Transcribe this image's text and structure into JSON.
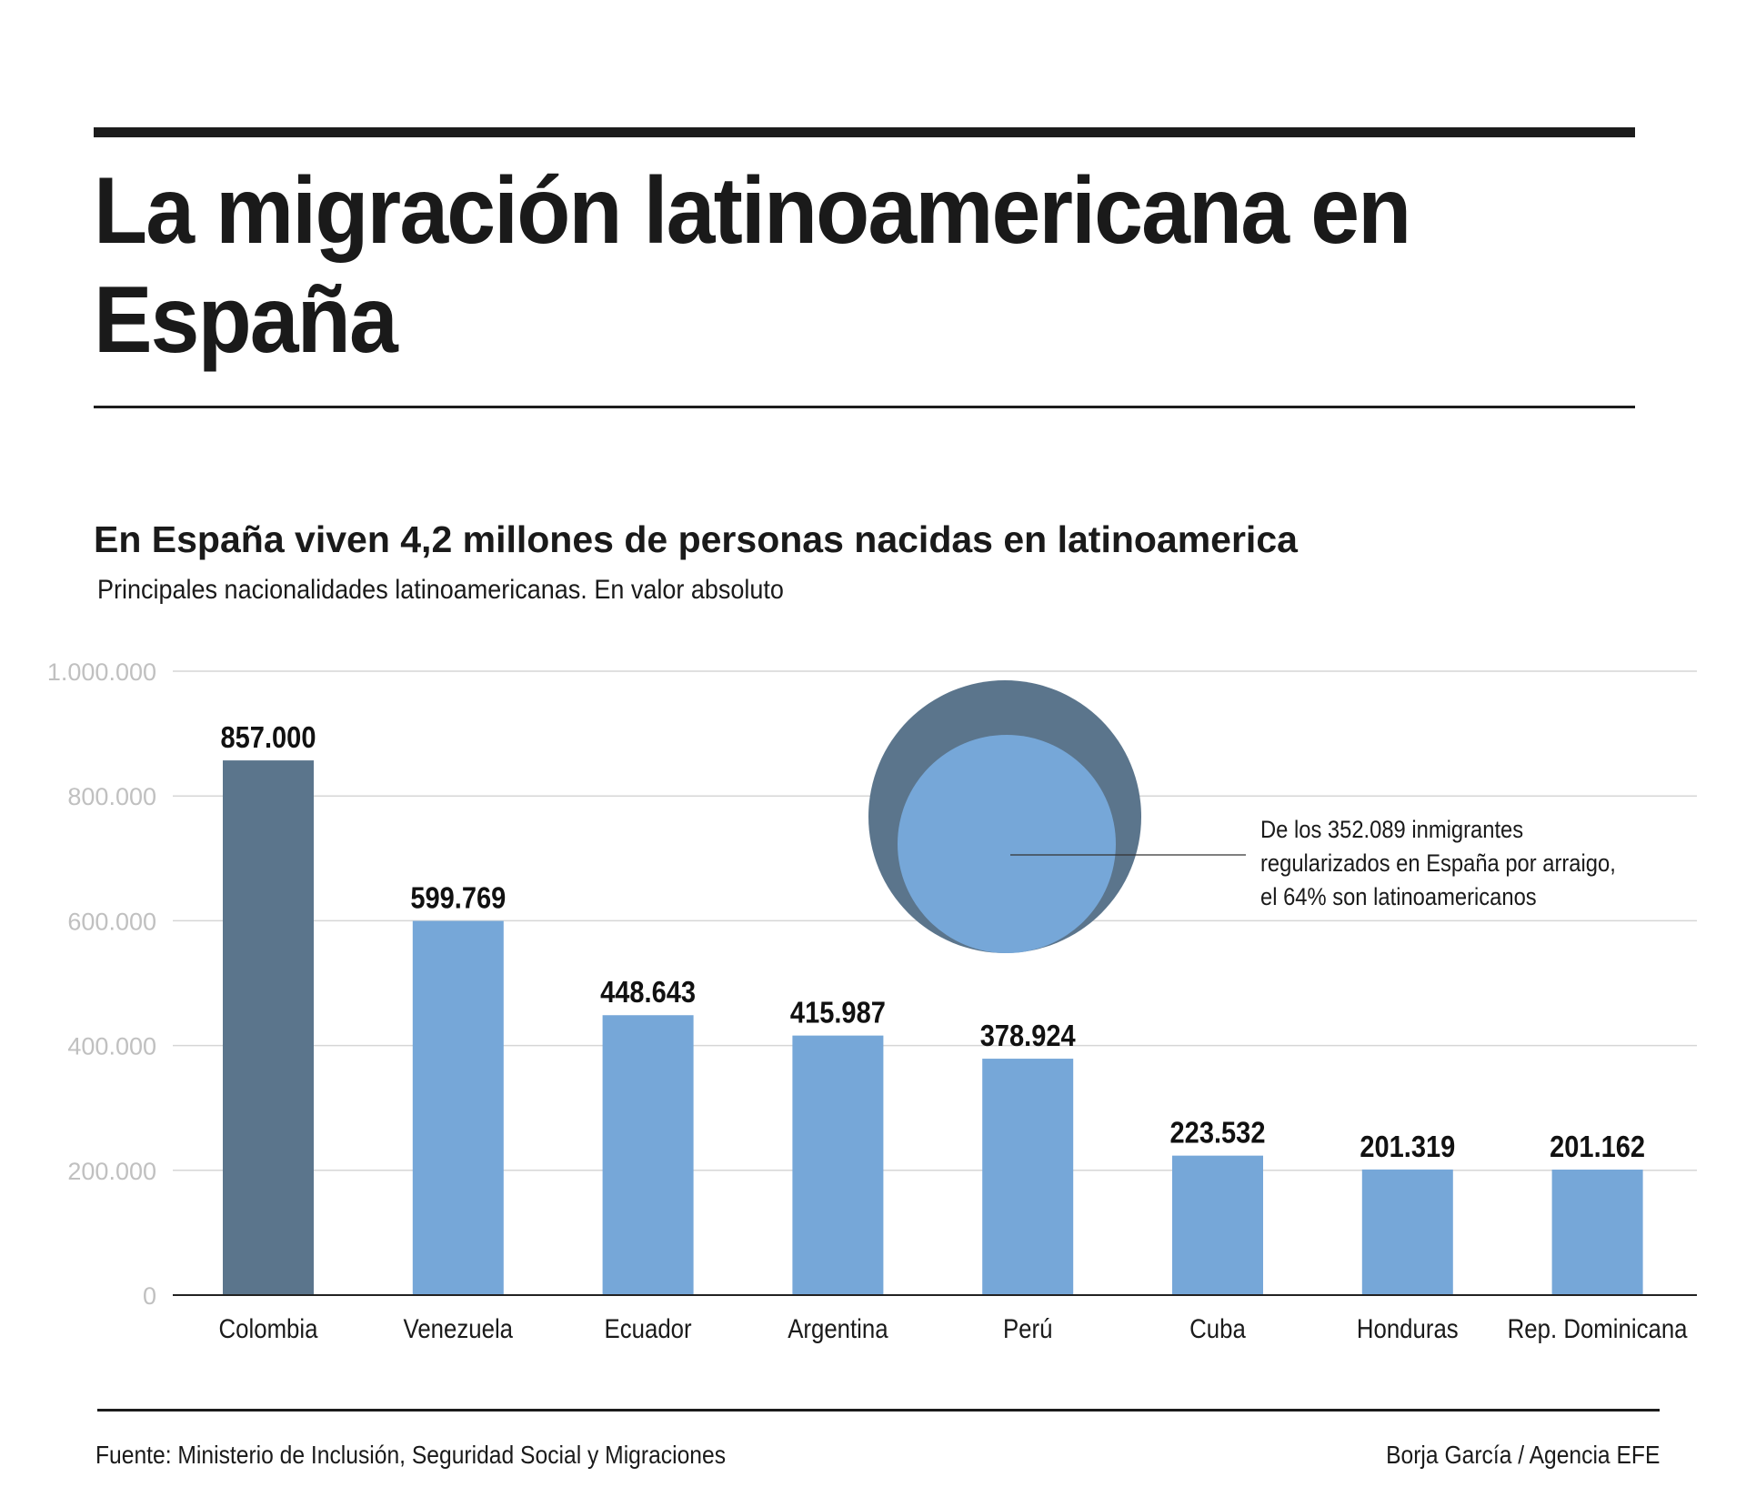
{
  "header": {
    "title": "La migración latinoamericana en España"
  },
  "chart_header": {
    "headline": "En España viven 4,2 millones de personas nacidas en latinoamerica",
    "subtitle": "Principales nacionalidades latinoamericanas. En valor absoluto"
  },
  "colors": {
    "highlight_bar": "#5b758c",
    "bar": "#76a7d8",
    "gridline": "#d6d6d6",
    "axis_label": "#c0c0c0",
    "outer_circle": "#5b758c",
    "inner_circle": "#76a7d8"
  },
  "chart_data": {
    "type": "bar",
    "title": "En España viven 4,2 millones de personas nacidas en latinoamerica",
    "subtitle": "Principales nacionalidades latinoamericanas. En valor absoluto",
    "xlabel": "",
    "ylabel": "",
    "categories": [
      "Colombia",
      "Venezuela",
      "Ecuador",
      "Argentina",
      "Perú",
      "Cuba",
      "Honduras",
      "Rep. Dominicana"
    ],
    "values": [
      857000,
      599769,
      448643,
      415987,
      378924,
      223532,
      201319,
      201162
    ],
    "value_labels": [
      "857.000",
      "599.769",
      "448.643",
      "415.987",
      "378.924",
      "223.532",
      "201.319",
      "201.162"
    ],
    "highlighted_category": "Colombia",
    "ylim": [
      0,
      1000000
    ],
    "yticks": [
      0,
      200000,
      400000,
      600000,
      800000,
      1000000
    ],
    "ytick_labels": [
      "0",
      "200.000",
      "400.000",
      "600.000",
      "800.000",
      "1.000.000"
    ],
    "grid": true,
    "legend": "none",
    "inset": {
      "type": "nested-circles",
      "total": 352089,
      "share_percent": 64,
      "annotation_lines": [
        "De los  352.089 inmigrantes",
        "regularizados en España por arraigo,",
        "el 64% son latinoamericanos"
      ]
    }
  },
  "footer": {
    "source": "Fuente: Ministerio de Inclusión, Seguridad Social y Migraciones",
    "credit": "Borja García / Agencia EFE"
  }
}
